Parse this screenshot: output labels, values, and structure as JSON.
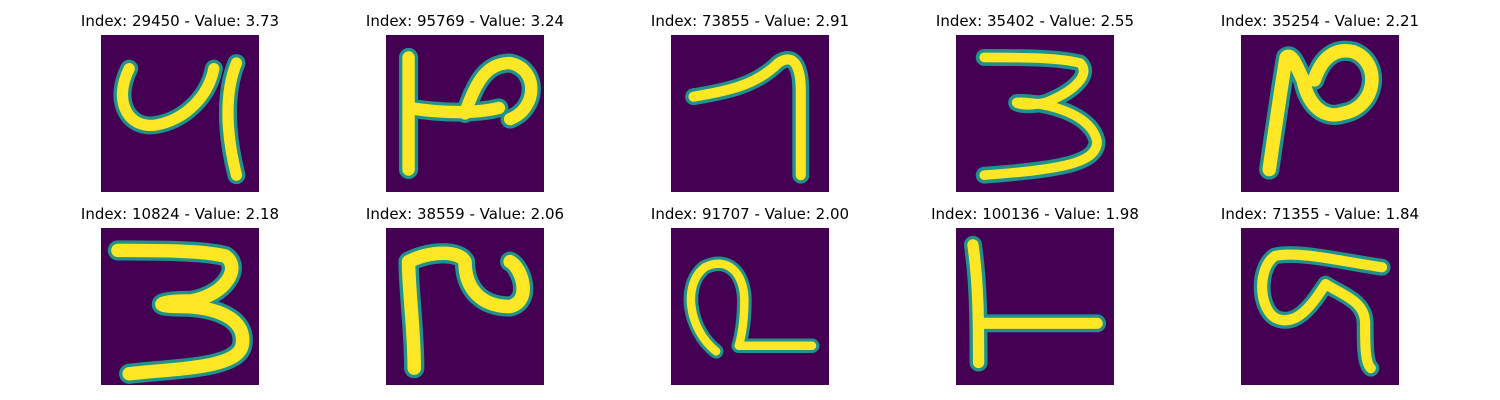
{
  "figure": {
    "colors": {
      "background": "#440154",
      "stroke_edge": "#21918c",
      "stroke_mid": "#5ec962",
      "stroke_core": "#fde725"
    },
    "panels": [
      {
        "title": "Index: 29450 - Value: 3.73",
        "glyph": "4-like"
      },
      {
        "title": "Index: 95769 - Value: 3.24",
        "glyph": "h-shape"
      },
      {
        "title": "Index: 73855 - Value: 2.91",
        "glyph": "7-like"
      },
      {
        "title": "Index: 35402 - Value: 2.55",
        "glyph": "3"
      },
      {
        "title": "Index: 35254 - Value: 2.21",
        "glyph": "N-like"
      },
      {
        "title": "Index: 10824 - Value: 2.18",
        "glyph": "3"
      },
      {
        "title": "Index: 38559 - Value: 2.06",
        "glyph": "h-shape"
      },
      {
        "title": "Index: 91707 - Value: 2.00",
        "glyph": "loop-2"
      },
      {
        "title": "Index: 100136 - Value: 1.98",
        "glyph": "L-shape"
      },
      {
        "title": "Index: 71355 - Value: 1.84",
        "glyph": "S-like"
      }
    ]
  }
}
